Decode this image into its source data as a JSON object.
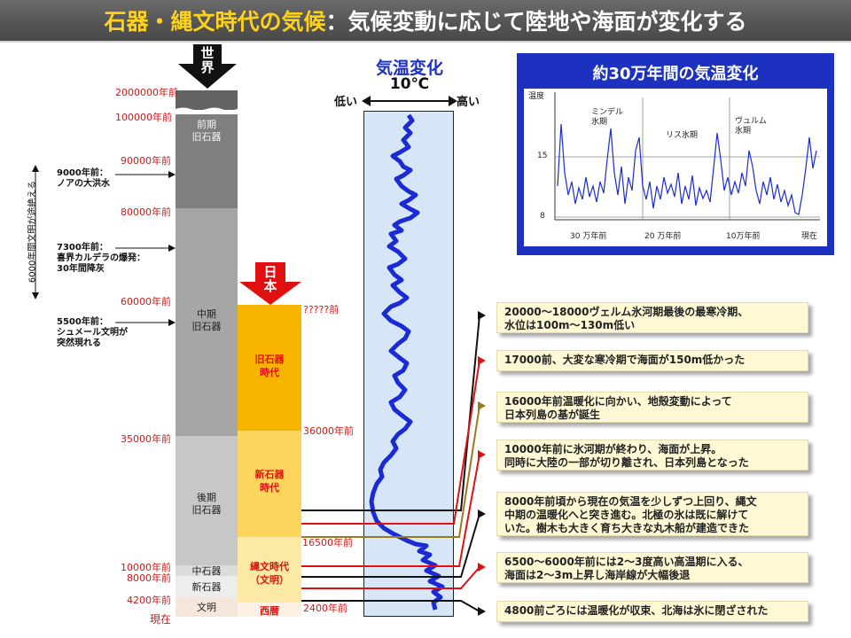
{
  "title": {
    "part1": "石器・縄文時代の気候",
    "part2": "：気候変動に応じて陸地や海面が変化する"
  },
  "world_label": "世\n界",
  "japan_label": "日\n本",
  "world_years": [
    "2000000年前",
    "100000年前",
    "90000年前",
    "80000年前",
    "60000年前",
    "35000年前",
    "10000年前",
    "8000年前",
    "4200年前",
    "現在"
  ],
  "world_eras": [
    "前期\n旧石器",
    "中期\n旧石器",
    "後期\n旧石器",
    "中石器",
    "新石器",
    "文明"
  ],
  "japan_years": [
    "?????前",
    "36000年前",
    "16500年前",
    "2400年前"
  ],
  "japan_eras": [
    "旧石器\n時代",
    "新石器\n時代",
    "縄文時代\n（文明）",
    "西暦"
  ],
  "side_notes": {
    "vertical": "6000年間文明が途絶える",
    "note1": "9000年前：\nノアの大洪水",
    "note2": "7300年前：\n喜界カルデラの爆発：\n30年間降灰",
    "note3": "5500年前：\nシュメール文明が\n突然現れる"
  },
  "temp_panel": {
    "title": "気温変化",
    "scale": "10℃",
    "low": "低い",
    "high": "高い"
  },
  "events": [
    "20000～18000ヴェルム氷河期最後の最寒冷期、\n水位は100m～130m低い",
    "17000前、大変な寒冷期で海面が150m低かった",
    "16000年前温暖化に向かい、地殻変動によって\n日本列島の基が誕生",
    "10000年前に氷河期が終わり、海面が上昇。\n同時に大陸の一部が切り離され、日本列島となった",
    "8000年前頃から現在の気温を少しずつ上回り、縄文\n中期の温暖化へと突き進む。北極の氷は既に解けて\nいた。樹木も大きく育ち大きな丸木船が建造できた",
    "6500～6000年前には2～3度高い高温期に入る、\n海面は2～3m上昇し海岸線が大幅後退",
    "4800前ごろには温暖化が収束、北海は氷に閉ざされた"
  ],
  "inset": {
    "title": "約30万年間の気温変化",
    "ylabel": "温度",
    "yticks": [
      "15",
      "8"
    ],
    "xticks": [
      "30 万年前",
      "20 万年前",
      "10万年前",
      "現在"
    ],
    "period_labels": [
      "ミンデル\n氷期",
      "リス氷期",
      "ヴュルム\n氷期"
    ]
  },
  "colors": {
    "title_bg": "#555555",
    "title_accent": "#ffd21a",
    "red": "#d01818",
    "blue_curve": "#1a2bd6",
    "panel_bg": "#d6e6f6",
    "inset_bg": "#1c31c0",
    "note_bg": "#fff8d4"
  }
}
